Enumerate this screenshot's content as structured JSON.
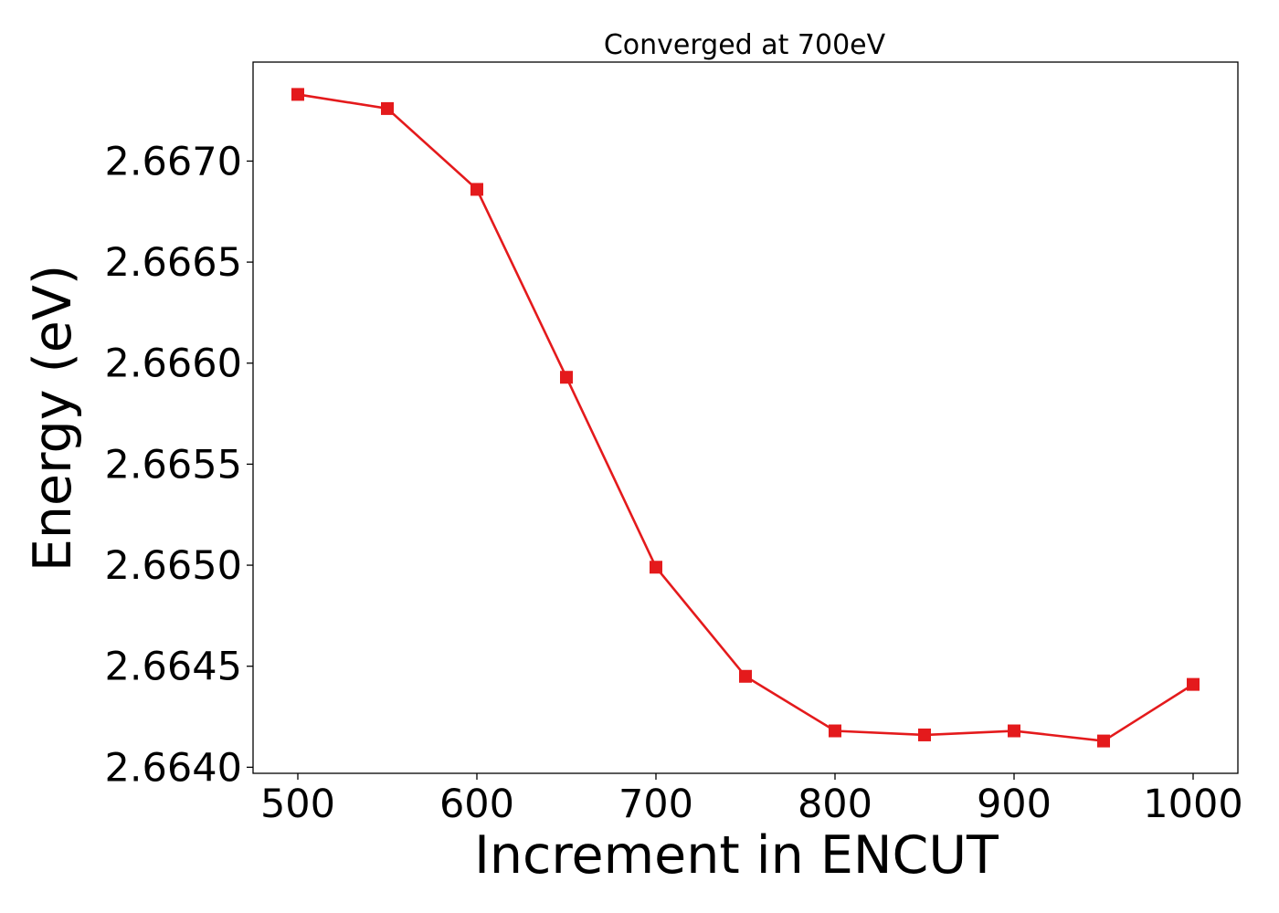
{
  "chart_data": {
    "type": "line",
    "title": "Converged at 700eV",
    "xlabel": "Increment in ENCUT",
    "ylabel": "Energy (eV)",
    "x": [
      500,
      550,
      600,
      650,
      700,
      750,
      800,
      850,
      900,
      950,
      1000
    ],
    "series": [
      {
        "values": [
          2.66733,
          2.66726,
          2.66686,
          2.66593,
          2.66499,
          2.66445,
          2.66418,
          2.66416,
          2.66418,
          2.66413,
          2.66441
        ],
        "color": "#e41a1c",
        "marker": "square"
      }
    ],
    "xticks": [
      "500",
      "600",
      "700",
      "800",
      "900",
      "1000"
    ],
    "xtick_values": [
      500,
      600,
      700,
      800,
      900,
      1000
    ],
    "yticks": [
      "2.6640",
      "2.6645",
      "2.6650",
      "2.6655",
      "2.6660",
      "2.6665",
      "2.6670"
    ],
    "ytick_values": [
      2.664,
      2.6645,
      2.665,
      2.6655,
      2.666,
      2.6665,
      2.667
    ],
    "xlim": [
      475,
      1025
    ],
    "ylim": [
      2.66397,
      2.66749
    ],
    "grid": false,
    "legend": "none"
  }
}
